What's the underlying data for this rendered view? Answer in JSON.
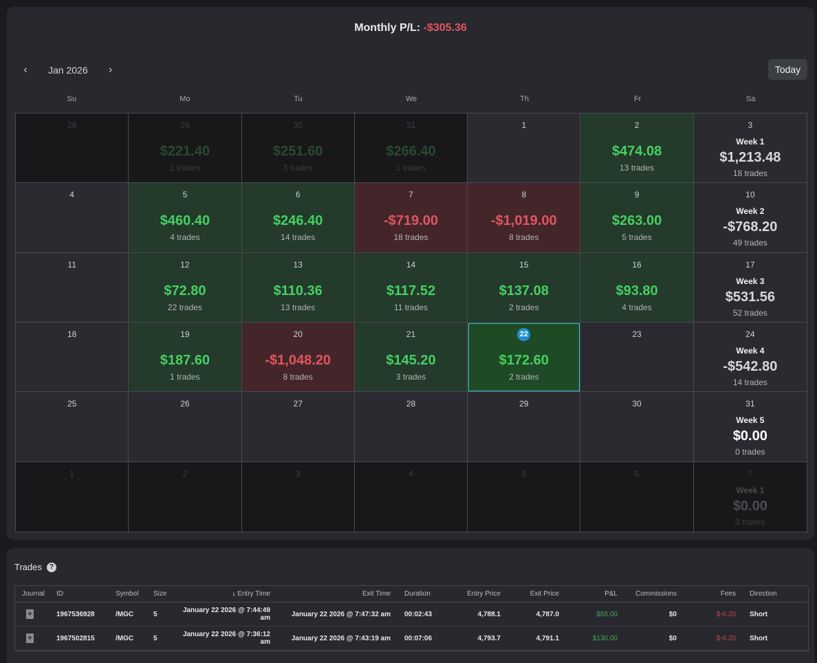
{
  "header": {
    "monthly_label": "Monthly P/L:",
    "monthly_value": "-$305.36"
  },
  "nav": {
    "month": "Jan 2026",
    "prev_icon": "chevron-left-icon",
    "next_icon": "chevron-right-icon",
    "today_label": "Today"
  },
  "weekdays": [
    "Su",
    "Mo",
    "Tu",
    "We",
    "Th",
    "Fr",
    "Sa"
  ],
  "colors": {
    "win": "#45d062",
    "loss": "#e05560",
    "selected_outline": "#3fbcd8",
    "badge": "#1e8fd0"
  },
  "calendar": [
    {
      "day": "28",
      "state": "out"
    },
    {
      "day": "29",
      "state": "out",
      "pl": "$221.40",
      "dir": "pos",
      "trades": "1 trades"
    },
    {
      "day": "30",
      "state": "out",
      "pl": "$251.60",
      "dir": "pos",
      "trades": "3 trades"
    },
    {
      "day": "31",
      "state": "out",
      "pl": "$266.40",
      "dir": "pos",
      "trades": "1 trades"
    },
    {
      "day": "1",
      "state": "empty"
    },
    {
      "day": "2",
      "state": "win",
      "pl": "$474.08",
      "dir": "pos",
      "trades": "13 trades"
    },
    {
      "day": "3",
      "state": "week",
      "week": "Week 1",
      "pl": "$1,213.48",
      "dir": "pos",
      "trades": "18 trades"
    },
    {
      "day": "4",
      "state": "empty"
    },
    {
      "day": "5",
      "state": "win",
      "pl": "$460.40",
      "dir": "pos",
      "trades": "4 trades"
    },
    {
      "day": "6",
      "state": "win",
      "pl": "$246.40",
      "dir": "pos",
      "trades": "14 trades"
    },
    {
      "day": "7",
      "state": "loss",
      "pl": "-$719.00",
      "dir": "neg",
      "trades": "18 trades"
    },
    {
      "day": "8",
      "state": "loss",
      "pl": "-$1,019.00",
      "dir": "neg",
      "trades": "8 trades"
    },
    {
      "day": "9",
      "state": "win",
      "pl": "$263.00",
      "dir": "pos",
      "trades": "5 trades"
    },
    {
      "day": "10",
      "state": "week",
      "week": "Week 2",
      "pl": "-$768.20",
      "dir": "neg",
      "trades": "49 trades"
    },
    {
      "day": "11",
      "state": "empty"
    },
    {
      "day": "12",
      "state": "win",
      "pl": "$72.80",
      "dir": "pos",
      "trades": "22 trades"
    },
    {
      "day": "13",
      "state": "win",
      "pl": "$110.36",
      "dir": "pos",
      "trades": "13 trades"
    },
    {
      "day": "14",
      "state": "win",
      "pl": "$117.52",
      "dir": "pos",
      "trades": "11 trades"
    },
    {
      "day": "15",
      "state": "win",
      "pl": "$137.08",
      "dir": "pos",
      "trades": "2 trades"
    },
    {
      "day": "16",
      "state": "win",
      "pl": "$93.80",
      "dir": "pos",
      "trades": "4 trades"
    },
    {
      "day": "17",
      "state": "week",
      "week": "Week 3",
      "pl": "$531.56",
      "dir": "pos",
      "trades": "52 trades"
    },
    {
      "day": "18",
      "state": "empty"
    },
    {
      "day": "19",
      "state": "win",
      "pl": "$187.60",
      "dir": "pos",
      "trades": "1 trades"
    },
    {
      "day": "20",
      "state": "loss",
      "pl": "-$1,048.20",
      "dir": "neg",
      "trades": "8 trades"
    },
    {
      "day": "21",
      "state": "win",
      "pl": "$145.20",
      "dir": "pos",
      "trades": "3 trades"
    },
    {
      "day": "22",
      "state": "sel",
      "pl": "$172.60",
      "dir": "pos",
      "trades": "2 trades"
    },
    {
      "day": "23",
      "state": "empty"
    },
    {
      "day": "24",
      "state": "week",
      "week": "Week 4",
      "pl": "-$542.80",
      "dir": "neg",
      "trades": "14 trades"
    },
    {
      "day": "25",
      "state": "empty"
    },
    {
      "day": "26",
      "state": "empty"
    },
    {
      "day": "27",
      "state": "empty"
    },
    {
      "day": "28",
      "state": "empty"
    },
    {
      "day": "29",
      "state": "empty"
    },
    {
      "day": "30",
      "state": "empty"
    },
    {
      "day": "31",
      "state": "week",
      "week": "Week 5",
      "pl": "$0.00",
      "dir": "zero",
      "trades": "0 trades"
    },
    {
      "day": "1",
      "state": "out"
    },
    {
      "day": "2",
      "state": "out"
    },
    {
      "day": "3",
      "state": "out"
    },
    {
      "day": "4",
      "state": "out"
    },
    {
      "day": "5",
      "state": "out"
    },
    {
      "day": "6",
      "state": "out"
    },
    {
      "day": "7",
      "state": "outweek",
      "week": "Week 1",
      "pl": "$0.00",
      "dir": "zero",
      "trades": "0 trades"
    }
  ],
  "trades": {
    "title": "Trades",
    "help_icon": "help-icon",
    "sort_icon": "arrow-down-icon",
    "columns": [
      "Journal",
      "ID",
      "Symbol",
      "Size",
      "Entry Time",
      "Exit Time",
      "Duration",
      "Entry Price",
      "Exit Price",
      "P&L",
      "Commissions",
      "Fees",
      "Direction"
    ],
    "rows": [
      {
        "id": "1967536928",
        "symbol": "/MGC",
        "size": "5",
        "entry_time": "January 22 2026 @ 7:44:49 am",
        "exit_time": "January 22 2026 @ 7:47:32 am",
        "duration": "00:02:43",
        "entry_price": "4,788.1",
        "exit_price": "4,787.0",
        "pnl": "$55.00",
        "commissions": "$0",
        "fees": "$-6.20",
        "direction": "Short"
      },
      {
        "id": "1967502815",
        "symbol": "/MGC",
        "size": "5",
        "entry_time": "January 22 2026 @ 7:36:12 am",
        "exit_time": "January 22 2026 @ 7:43:19 am",
        "duration": "00:07:06",
        "entry_price": "4,793.7",
        "exit_price": "4,791.1",
        "pnl": "$130.00",
        "commissions": "$0",
        "fees": "$-6.20",
        "direction": "Short"
      }
    ]
  }
}
